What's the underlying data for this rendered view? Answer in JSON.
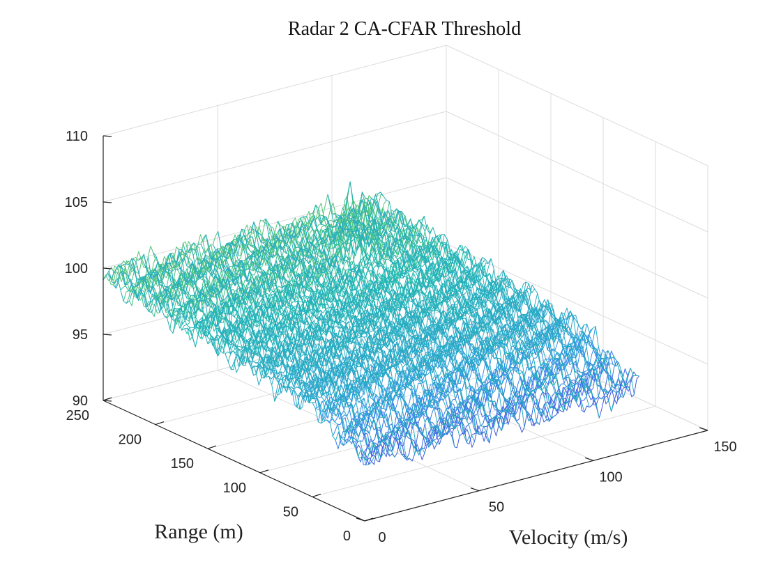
{
  "chart_data": {
    "type": "surface",
    "title": "Radar 2 CA-CFAR Threshold",
    "xlabel": "Velocity (m/s)",
    "ylabel": "Range (m)",
    "zlabel": "",
    "xlim": [
      0,
      150
    ],
    "ylim": [
      0,
      250
    ],
    "zlim": [
      90,
      110
    ],
    "x_ticks": [
      "0",
      "50",
      "100",
      "150"
    ],
    "y_ticks": [
      "0",
      "50",
      "100",
      "150",
      "200",
      "250"
    ],
    "z_ticks": [
      "90",
      "95",
      "100",
      "105",
      "110"
    ],
    "grid": true,
    "colormap": "parula",
    "surface_extent": {
      "velocity": [
        0,
        120
      ],
      "range": [
        0,
        250
      ]
    },
    "baseline_threshold_db": {
      "range_0": 94.5,
      "range_50": 97.0,
      "range_250": 99.5
    },
    "peaks": [
      {
        "velocity": 85,
        "range": 200,
        "threshold_db": 103.0
      },
      {
        "velocity": 92,
        "range": 198,
        "threshold_db": 103.0
      },
      {
        "velocity": 55,
        "range": 235,
        "threshold_db": 100.0
      }
    ],
    "colors": {
      "low": "#4a2fd8",
      "mid_low": "#2f8ef0",
      "mid": "#20bfa5",
      "mid_high": "#86ca4c",
      "high": "#f9d23c"
    }
  }
}
